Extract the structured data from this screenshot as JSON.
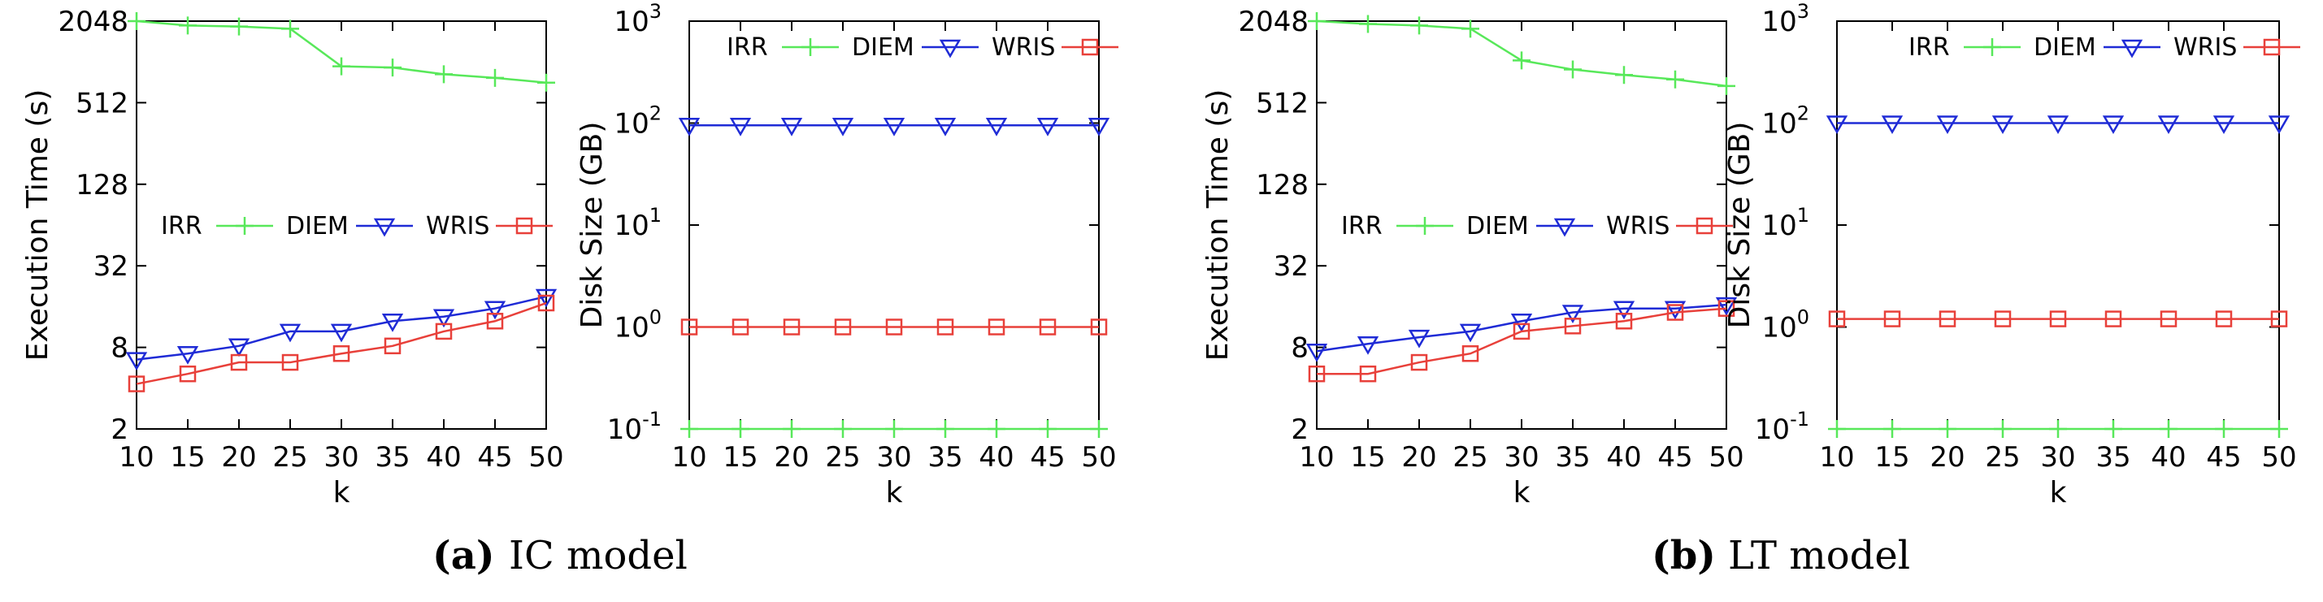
{
  "chart_data": [
    {
      "type": "line",
      "group": "a",
      "x": [
        10,
        15,
        20,
        25,
        30,
        35,
        40,
        45,
        50
      ],
      "xlabel": "k",
      "ylabel": "Execution Time (s)",
      "yscale": "log2",
      "ylim": [
        2,
        2048
      ],
      "xlim": [
        10,
        50
      ],
      "yticks": [
        "2",
        "8",
        "32",
        "128",
        "512",
        "2048"
      ],
      "xticks": [
        "10",
        "15",
        "20",
        "25",
        "30",
        "35",
        "40",
        "45",
        "50"
      ],
      "legend_position": "middle-left",
      "series": [
        {
          "name": "IRR",
          "color": "#58e85a",
          "marker": "plus",
          "values": [
            2048,
            1900,
            1870,
            1800,
            950,
            930,
            830,
            780,
            720
          ]
        },
        {
          "name": "DIEM",
          "color": "#1f2bd6",
          "marker": "triangle-down",
          "values": [
            6.5,
            7.2,
            8.2,
            10.5,
            10.5,
            12.5,
            13.5,
            15.5,
            19
          ]
        },
        {
          "name": "WRIS",
          "color": "#e8403a",
          "marker": "square",
          "values": [
            4.3,
            5.1,
            6.2,
            6.2,
            7.2,
            8.2,
            10.5,
            12.5,
            17
          ]
        }
      ]
    },
    {
      "type": "line",
      "group": "a",
      "x": [
        10,
        15,
        20,
        25,
        30,
        35,
        40,
        45,
        50
      ],
      "xlabel": "k",
      "ylabel": "Disk Size (GB)",
      "yscale": "log10",
      "ylim": [
        0.1,
        1000
      ],
      "xlim": [
        10,
        50
      ],
      "yticks": [
        "10",
        "10",
        "10",
        "10",
        "10"
      ],
      "yticks_exp": [
        "-1",
        "0",
        "1",
        "2",
        "3"
      ],
      "xticks": [
        "10",
        "15",
        "20",
        "25",
        "30",
        "35",
        "40",
        "45",
        "50"
      ],
      "legend_position": "top",
      "series": [
        {
          "name": "IRR",
          "color": "#58e85a",
          "marker": "plus",
          "values": [
            0.1,
            0.1,
            0.1,
            0.1,
            0.1,
            0.1,
            0.1,
            0.1,
            0.1
          ]
        },
        {
          "name": "DIEM",
          "color": "#1f2bd6",
          "marker": "triangle-down",
          "values": [
            95,
            95,
            95,
            95,
            95,
            95,
            95,
            95,
            95
          ]
        },
        {
          "name": "WRIS",
          "color": "#e8403a",
          "marker": "square",
          "values": [
            1,
            1,
            1,
            1,
            1,
            1,
            1,
            1,
            1
          ]
        }
      ]
    },
    {
      "type": "line",
      "group": "b",
      "x": [
        10,
        15,
        20,
        25,
        30,
        35,
        40,
        45,
        50
      ],
      "xlabel": "k",
      "ylabel": "Execution Time (s)",
      "yscale": "log2",
      "ylim": [
        2,
        2048
      ],
      "xlim": [
        10,
        50
      ],
      "yticks": [
        "2",
        "8",
        "32",
        "128",
        "512",
        "2048"
      ],
      "xticks": [
        "10",
        "15",
        "20",
        "25",
        "30",
        "35",
        "40",
        "45",
        "50"
      ],
      "legend_position": "middle-left",
      "series": [
        {
          "name": "IRR",
          "color": "#58e85a",
          "marker": "plus",
          "values": [
            2048,
            1950,
            1900,
            1800,
            1050,
            900,
            820,
            760,
            680
          ]
        },
        {
          "name": "DIEM",
          "color": "#1f2bd6",
          "marker": "triangle-down",
          "values": [
            7.5,
            8.5,
            9.5,
            10.5,
            12.5,
            14.5,
            15.5,
            15.5,
            16.5
          ]
        },
        {
          "name": "WRIS",
          "color": "#e8403a",
          "marker": "square",
          "values": [
            5.1,
            5.1,
            6.2,
            7.2,
            10.5,
            11.5,
            12.5,
            14.5,
            15.5
          ]
        }
      ]
    },
    {
      "type": "line",
      "group": "b",
      "x": [
        10,
        15,
        20,
        25,
        30,
        35,
        40,
        45,
        50
      ],
      "xlabel": "k",
      "ylabel": "Disk Size (GB)",
      "yscale": "log10",
      "ylim": [
        0.1,
        1000
      ],
      "xlim": [
        10,
        50
      ],
      "yticks": [
        "10",
        "10",
        "10",
        "10",
        "10"
      ],
      "yticks_exp": [
        "-1",
        "0",
        "1",
        "2",
        "3"
      ],
      "xticks": [
        "10",
        "15",
        "20",
        "25",
        "30",
        "35",
        "40",
        "45",
        "50"
      ],
      "legend_position": "top",
      "series": [
        {
          "name": "IRR",
          "color": "#58e85a",
          "marker": "plus",
          "values": [
            0.1,
            0.1,
            0.1,
            0.1,
            0.1,
            0.1,
            0.1,
            0.1,
            0.1
          ]
        },
        {
          "name": "DIEM",
          "color": "#1f2bd6",
          "marker": "triangle-down",
          "values": [
            100,
            100,
            100,
            100,
            100,
            100,
            100,
            100,
            100
          ]
        },
        {
          "name": "WRIS",
          "color": "#e8403a",
          "marker": "square",
          "values": [
            1.2,
            1.2,
            1.2,
            1.2,
            1.2,
            1.2,
            1.2,
            1.2,
            1.2
          ]
        }
      ]
    }
  ],
  "captions": [
    {
      "letter": "(a)",
      "text": "IC model"
    },
    {
      "letter": "(b)",
      "text": "LT model"
    }
  ]
}
